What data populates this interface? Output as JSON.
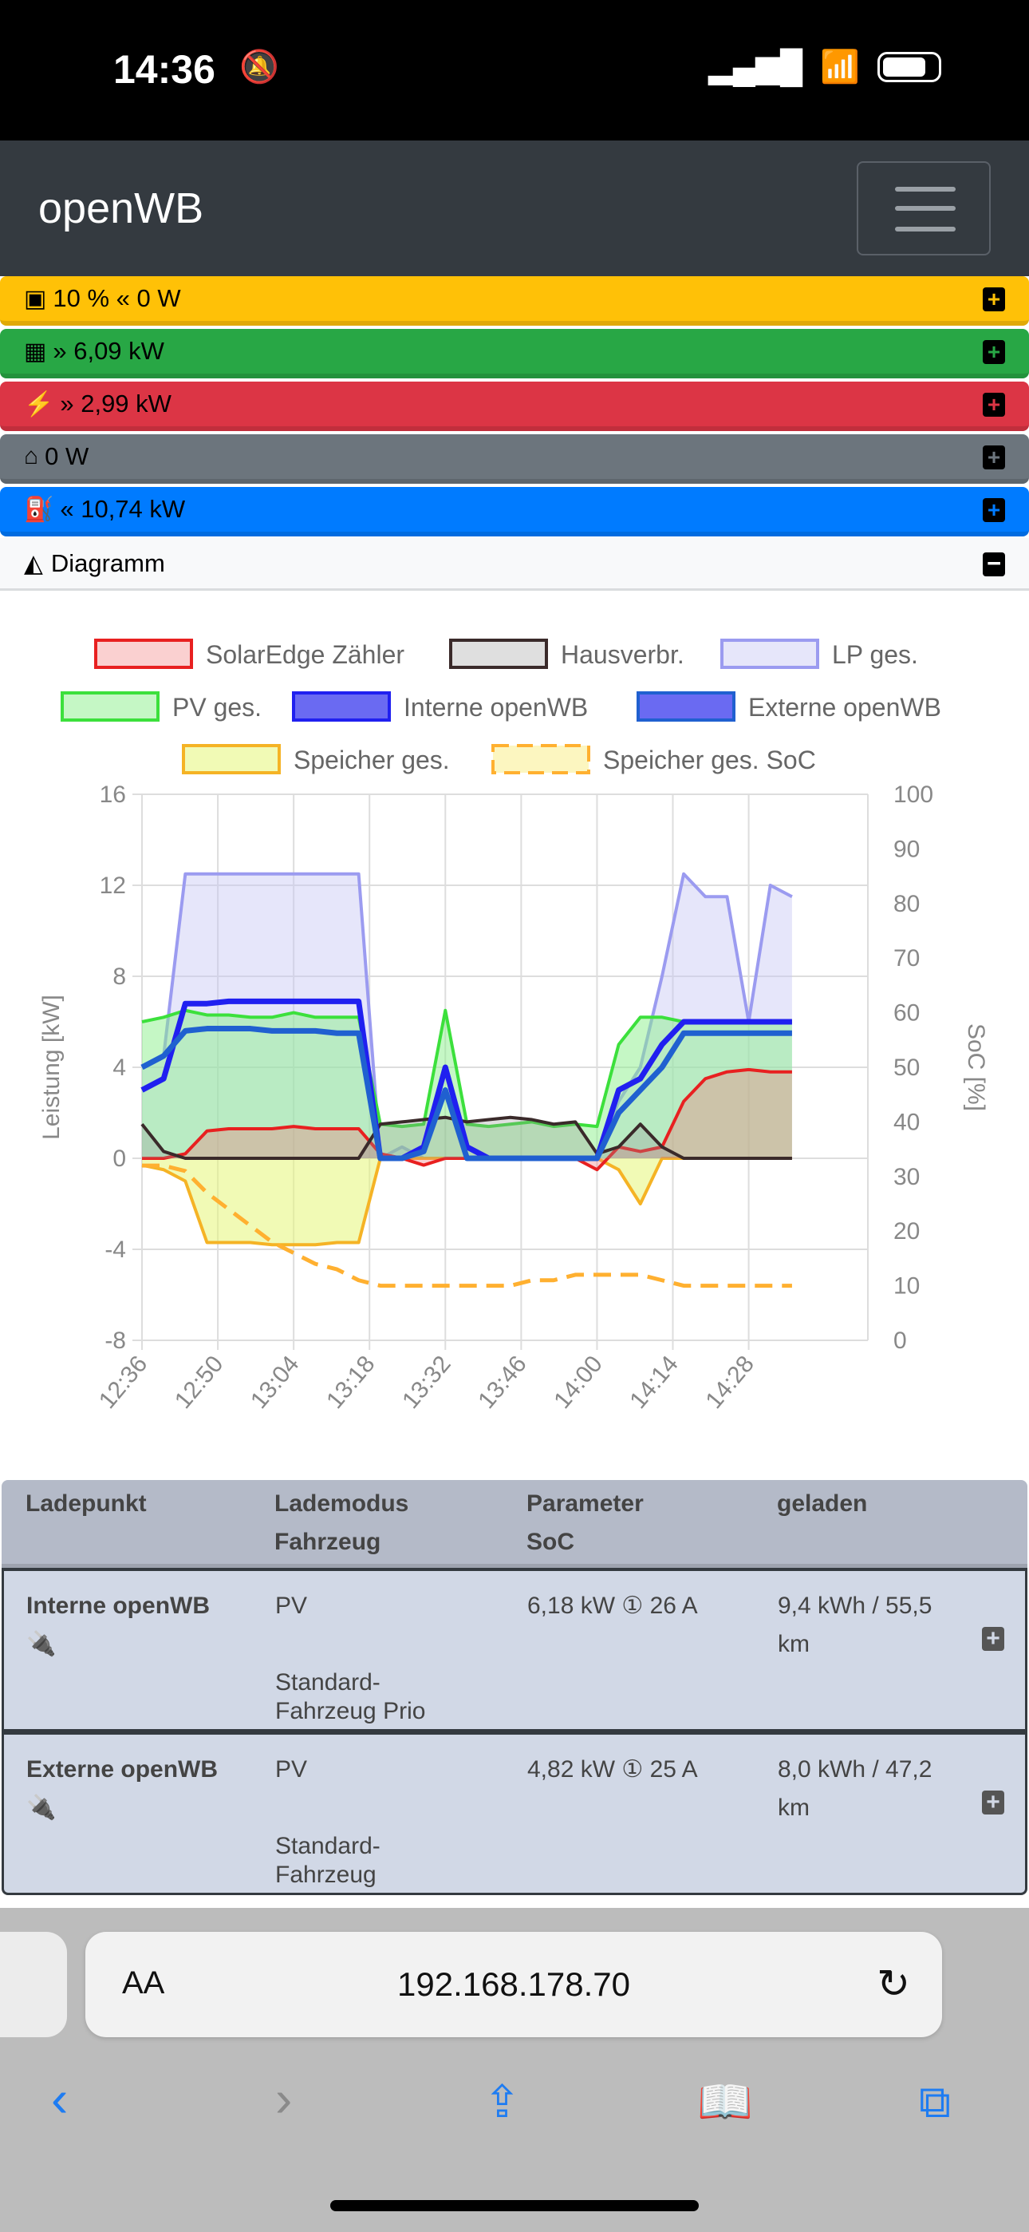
{
  "status_bar": {
    "time": "14:36"
  },
  "navbar": {
    "brand": "openWB"
  },
  "summary_rows": [
    {
      "icon": "battery-icon",
      "arrow": "«",
      "value": "10 % « 0 W",
      "color": "#ffc107"
    },
    {
      "icon": "solar-panel-icon",
      "value": "» 6,09 kW",
      "color": "#28a745"
    },
    {
      "icon": "power-tower-icon",
      "value": "» 2,99 kW",
      "color": "#dc3545"
    },
    {
      "icon": "home-icon",
      "value": "0 W",
      "color": "#6c757d"
    },
    {
      "icon": "charging-station-icon",
      "value": "« 10,74 kW",
      "color": "#007bff"
    }
  ],
  "diagram": {
    "label": "Diagramm"
  },
  "chart_data": {
    "type": "area",
    "xlabel": "",
    "ylabel": "Leistung [kW]",
    "y2label": "SoC [%]",
    "ylim": [
      -8,
      16
    ],
    "y2lim": [
      0,
      100
    ],
    "yticks": [
      "16",
      "12",
      "8",
      "4",
      "0",
      "-4",
      "-8"
    ],
    "y2ticks": [
      "100",
      "90",
      "80",
      "70",
      "60",
      "50",
      "40",
      "30",
      "20",
      "10",
      "0"
    ],
    "xticks": [
      "12:36",
      "12:50",
      "13:04",
      "13:18",
      "13:32",
      "13:46",
      "14:00",
      "14:14",
      "14:28"
    ],
    "x_minutes_from_1236": [
      0,
      4,
      8,
      12,
      16,
      20,
      24,
      28,
      32,
      36,
      40,
      44,
      48,
      52,
      56,
      60,
      64,
      68,
      72,
      76,
      80,
      84,
      88,
      92,
      96,
      100,
      104,
      108,
      112,
      116,
      120
    ],
    "legend_position": "top",
    "series": [
      {
        "name": "LP ges.",
        "color": "#9b9bf0",
        "fill": "rgba(200,200,245,0.45)",
        "values": [
          4,
          4.5,
          12.5,
          12.5,
          12.5,
          12.5,
          12.5,
          12.5,
          12.5,
          12.5,
          12.5,
          0,
          0.5,
          0,
          0,
          0,
          0,
          0,
          0,
          0,
          0,
          0,
          2.5,
          4,
          8,
          12.5,
          11.5,
          11.5,
          6,
          12,
          11.5
        ]
      },
      {
        "name": "PV ges.",
        "color": "#3ce03c",
        "fill": "rgba(140,240,140,0.5)",
        "values": [
          6,
          6.2,
          6.5,
          6.3,
          6.3,
          6.2,
          6.2,
          6.4,
          6.2,
          6.2,
          6.2,
          1.5,
          1.4,
          1.5,
          6.5,
          1.5,
          1.4,
          1.5,
          1.6,
          1.4,
          1.5,
          1.4,
          5,
          6.2,
          6.2,
          6,
          6,
          6,
          6,
          6,
          6
        ]
      },
      {
        "name": "Speicher ges.",
        "color": "#f5b325",
        "fill": "rgba(230,245,120,0.55)",
        "values": [
          -0.3,
          -0.5,
          -1,
          -3.7,
          -3.7,
          -3.7,
          -3.8,
          -3.8,
          -3.8,
          -3.7,
          -3.7,
          0,
          0,
          0,
          0,
          0,
          0,
          0,
          0,
          0,
          0,
          0,
          -0.5,
          -2,
          0,
          0,
          0,
          0,
          0,
          0,
          0
        ]
      },
      {
        "name": "SolarEdge Zähler",
        "color": "#e82020",
        "fill": "rgba(240,120,120,0.35)",
        "values": [
          0,
          0,
          0.2,
          1.2,
          1.3,
          1.3,
          1.3,
          1.4,
          1.3,
          1.3,
          1.3,
          0.2,
          0,
          -0.3,
          0,
          0,
          0,
          0,
          0,
          0,
          0,
          -0.5,
          0.5,
          0.3,
          0.5,
          2.5,
          3.5,
          3.8,
          3.9,
          3.8,
          3.8
        ]
      },
      {
        "name": "Hausverbr.",
        "color": "#3a2a2a",
        "fill": "rgba(150,150,150,0.3)",
        "values": [
          1.5,
          0.3,
          0,
          0,
          0,
          0,
          0,
          0,
          0,
          0,
          0,
          1.5,
          1.6,
          1.7,
          1.8,
          1.6,
          1.7,
          1.8,
          1.7,
          1.5,
          1.6,
          0.2,
          0.5,
          1.5,
          0.5,
          0,
          0,
          0,
          0,
          0,
          0
        ]
      },
      {
        "name": "Interne openWB",
        "color": "#2020f0",
        "fill": "none",
        "values": [
          3,
          3.5,
          6.8,
          6.8,
          6.9,
          6.9,
          6.9,
          6.9,
          6.9,
          6.9,
          6.9,
          0,
          0,
          0.5,
          4,
          0.5,
          0,
          0,
          0,
          0,
          0,
          0,
          3,
          3.5,
          5,
          6,
          6,
          6,
          6,
          6,
          6
        ]
      },
      {
        "name": "Externe openWB",
        "color": "#2060d0",
        "fill": "none",
        "values": [
          4,
          4.5,
          5.6,
          5.7,
          5.7,
          5.7,
          5.6,
          5.6,
          5.6,
          5.5,
          5.5,
          0,
          0,
          0.3,
          3,
          0,
          0,
          0,
          0,
          0,
          0,
          0,
          2,
          3,
          4,
          5.5,
          5.5,
          5.5,
          5.5,
          5.5,
          5.5
        ]
      },
      {
        "name": "Speicher ges. SoC",
        "color": "#ffb030",
        "axis": "right",
        "dashed": true,
        "values": [
          32,
          32,
          31,
          27,
          24,
          21,
          18,
          16,
          14,
          13,
          11,
          10,
          10,
          10,
          10,
          10,
          10,
          10,
          11,
          11,
          12,
          12,
          12,
          12,
          11,
          10,
          10,
          10,
          10,
          10,
          10
        ]
      }
    ]
  },
  "table": {
    "headers": {
      "c1": "Ladepunkt",
      "c2a": "Lademodus",
      "c2b": "Fahrzeug",
      "c3a": "Parameter",
      "c3b": "SoC",
      "c4": "geladen"
    },
    "rows": [
      {
        "name": "Interne openWB",
        "mode": "PV",
        "vehicle1": "Standard-",
        "vehicle2": "Fahrzeug Prio",
        "param": "6,18 kW ① 26 A",
        "charged1": "9,4 kWh / 55,5",
        "charged2": "km"
      },
      {
        "name": "Externe openWB",
        "mode": "PV",
        "vehicle1": "Standard-",
        "vehicle2": "Fahrzeug",
        "param": "4,82 kW ① 25 A",
        "charged1": "8,0 kWh / 47,2",
        "charged2": "km"
      }
    ]
  },
  "browser": {
    "aa": "AA",
    "url": "192.168.178.70"
  }
}
